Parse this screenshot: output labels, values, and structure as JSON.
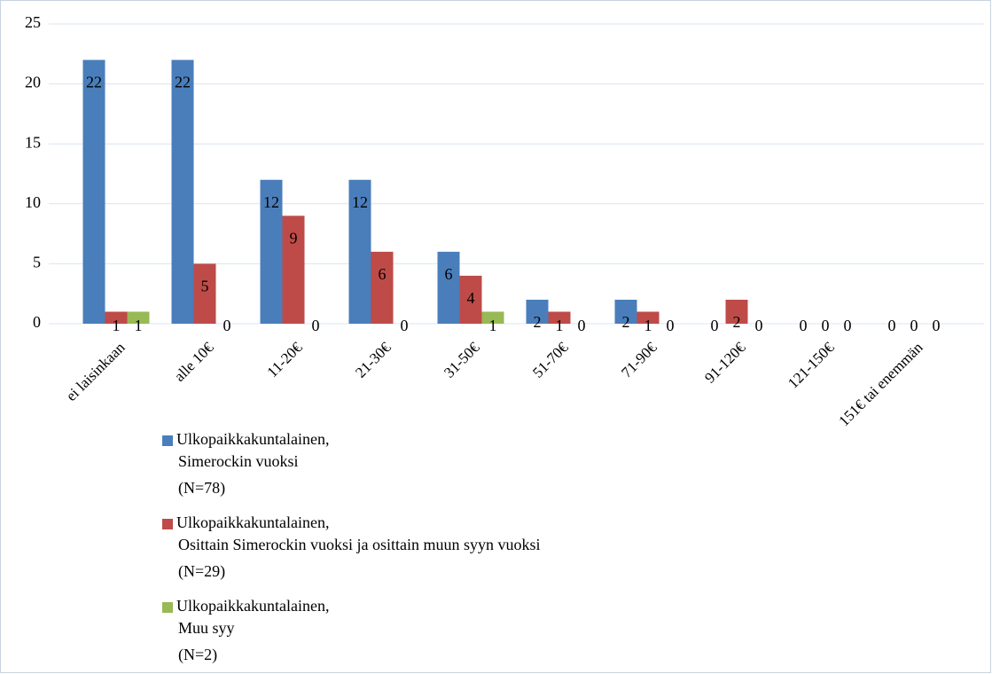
{
  "chart_data": {
    "type": "bar",
    "categories": [
      "ei laisinkaan",
      "alle 10€",
      "11-20€",
      "21-30€",
      "31-50€",
      "51-70€",
      "71-90€",
      "91-120€",
      "121-150€",
      "151€ tai enemmän"
    ],
    "series": [
      {
        "name": "Ulkopaikkakuntalainen,\nSimerockin vuoksi\n(N=78)",
        "color": "#4a7ebb",
        "values": [
          22,
          22,
          12,
          12,
          6,
          2,
          2,
          0,
          0,
          0
        ]
      },
      {
        "name": "Ulkopaikkakuntalainen,\nOsittain Simerockin vuoksi ja osittain muun syyn vuoksi\n(N=29)",
        "color": "#be4b48",
        "values": [
          1,
          5,
          9,
          6,
          4,
          1,
          1,
          2,
          0,
          0
        ]
      },
      {
        "name": "Ulkopaikkakuntalainen,\nMuu syy\n(N=2)",
        "color": "#98b954",
        "values": [
          1,
          0,
          0,
          0,
          1,
          0,
          0,
          0,
          0,
          0
        ]
      }
    ],
    "ylim": [
      0,
      25
    ],
    "yticks": [
      0,
      5,
      10,
      15,
      20,
      25
    ],
    "grid": true
  }
}
